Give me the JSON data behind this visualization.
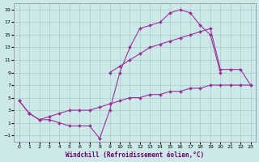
{
  "xlabel": "Windchill (Refroidissement éolien,°C)",
  "bg_color": "#cce8e8",
  "grid_color": "#aacccc",
  "line_color": "#993399",
  "xlim": [
    -0.5,
    23.5
  ],
  "ylim": [
    -2,
    20
  ],
  "line1_x": [
    0,
    1,
    2,
    3,
    4,
    5,
    6,
    7,
    8,
    9,
    10,
    11,
    12,
    13,
    14,
    15,
    16,
    17,
    18,
    19,
    20
  ],
  "line1_y": [
    4.5,
    2.5,
    1.5,
    1.5,
    1.0,
    0.5,
    0.5,
    0.5,
    -1.5,
    3.0,
    9.0,
    13.0,
    16.0,
    16.5,
    17.0,
    18.5,
    19.0,
    18.5,
    16.5,
    15.0,
    9.0
  ],
  "line2_x": [
    0,
    1,
    2,
    3,
    4,
    5,
    6,
    7,
    8,
    9,
    10,
    11,
    12,
    13,
    14,
    15,
    16,
    17,
    18,
    19,
    20,
    21,
    22,
    23
  ],
  "line2_y": [
    4.5,
    2.5,
    1.5,
    2.0,
    2.5,
    3.0,
    3.0,
    3.0,
    3.5,
    4.0,
    4.5,
    5.0,
    5.0,
    5.5,
    5.5,
    6.0,
    6.0,
    6.5,
    6.5,
    7.0,
    7.0,
    7.0,
    7.0,
    7.0
  ],
  "line3_x": [
    9,
    10,
    11,
    12,
    13,
    14,
    15,
    16,
    17,
    18,
    19,
    20,
    21,
    22,
    23
  ],
  "line3_y": [
    9.0,
    10.0,
    11.0,
    12.0,
    13.0,
    13.5,
    14.0,
    14.5,
    15.0,
    15.5,
    16.0,
    9.5,
    9.5,
    9.5,
    7.0
  ]
}
